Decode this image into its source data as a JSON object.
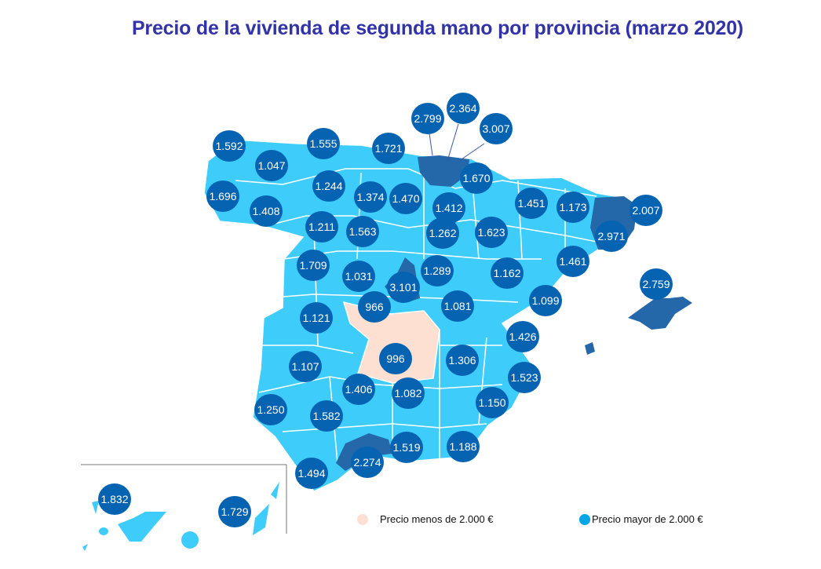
{
  "title": "Precio de la vivienda de segunda mano por provincia (marzo 2020)",
  "colors": {
    "province_low": "#3ecdfb",
    "province_below_castilla": "#fde0d2",
    "province_high": "#2468aa",
    "marker": "#0563b1",
    "title": "#3333a8",
    "legend_high_dot": "#00a5e5"
  },
  "legend": [
    {
      "label": "Precio menos de 2.000 €",
      "color": "#fde0d2"
    },
    {
      "label": "Precio mayor de 2.000 €",
      "color": "#00a5e5"
    }
  ],
  "values": [
    "1.592",
    "1.047",
    "1.555",
    "1.721",
    "2.799",
    "2.364",
    "3.007",
    "1.696",
    "1.244",
    "1.374",
    "1.470",
    "1.670",
    "1.412",
    "1.451",
    "1.173",
    "2.007",
    "1.408",
    "1.211",
    "1.563",
    "1.262",
    "1.623",
    "2.971",
    "1.461",
    "1.709",
    "1.031",
    "3.101",
    "1.289",
    "1.162",
    "2.759",
    "966",
    "1.081",
    "1.099",
    "1.121",
    "1.426",
    "996",
    "1.306",
    "1.107",
    "1.523",
    "1.406",
    "1.082",
    "1.150",
    "1.250",
    "1.582",
    "1.519",
    "1.188",
    "2.274",
    "1.494",
    "1.832",
    "1.729"
  ]
}
